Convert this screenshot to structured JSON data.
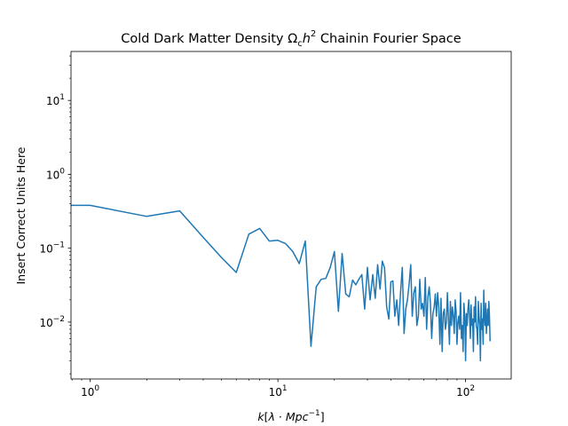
{
  "chart_data": {
    "type": "line",
    "title": "Cold Dark Matter Density Ω_c h^2 Chainin Fourier Space",
    "title_parts": [
      "Cold Dark Matter Density ",
      "Ω",
      "c",
      "h",
      "2",
      " Chainin Fourier Space"
    ],
    "xlabel": "k[λ · Mpc^-1]",
    "xlabel_parts": [
      "k",
      "[",
      "λ",
      " · ",
      "Mpc",
      "−1",
      "]"
    ],
    "ylabel": "Insert Correct Units Here",
    "xscale": "log",
    "yscale": "log",
    "xlim": [
      0.79,
      175
    ],
    "ylim": [
      0.0017,
      46
    ],
    "grid": false,
    "line_color": "#1f77b4",
    "x_ticks": [
      {
        "value": 1,
        "base": "10",
        "exp": "0"
      },
      {
        "value": 10,
        "base": "10",
        "exp": "1"
      },
      {
        "value": 100,
        "base": "10",
        "exp": "2"
      }
    ],
    "y_ticks": [
      {
        "value": 0.01,
        "base": "10",
        "exp": "−2"
      },
      {
        "value": 0.1,
        "base": "10",
        "exp": "−1"
      },
      {
        "value": 1,
        "base": "10",
        "exp": "0"
      },
      {
        "value": 10,
        "base": "10",
        "exp": "1"
      }
    ],
    "series": [
      {
        "x": [
          0.5,
          1,
          2,
          3,
          4,
          5,
          6,
          7,
          8,
          9,
          10,
          11,
          12,
          13,
          14,
          15,
          16,
          17,
          18,
          19,
          20,
          21,
          22,
          23,
          24,
          25,
          26,
          27,
          28,
          29,
          30,
          31,
          32,
          33,
          34,
          35,
          36,
          37,
          38,
          39,
          40,
          41,
          42,
          43,
          44,
          45,
          46,
          47,
          48,
          49,
          50,
          51,
          52,
          53,
          54,
          55,
          56,
          57,
          58,
          59,
          60,
          61,
          62,
          63,
          64,
          65,
          66,
          67,
          68,
          69,
          70,
          71,
          72,
          73,
          74,
          75,
          76,
          77,
          78,
          79,
          80,
          81,
          82,
          83,
          84,
          85,
          86,
          87,
          88,
          89,
          90,
          91,
          92,
          93,
          94,
          95,
          96,
          97,
          98,
          99,
          100,
          101,
          102,
          103,
          104,
          105,
          106,
          107,
          108,
          109,
          110,
          111,
          112,
          113,
          114,
          115,
          116,
          117,
          118,
          119,
          120,
          121,
          122,
          123,
          124,
          125,
          126,
          127,
          128,
          129,
          130,
          131,
          132,
          133,
          134,
          135
        ],
        "y": [
          0.38,
          0.38,
          0.27,
          0.32,
          0.14,
          0.075,
          0.047,
          0.155,
          0.185,
          0.125,
          0.128,
          0.115,
          0.09,
          0.062,
          0.125,
          0.0047,
          0.03,
          0.038,
          0.039,
          0.055,
          0.09,
          0.014,
          0.085,
          0.024,
          0.022,
          0.037,
          0.032,
          0.038,
          0.044,
          0.015,
          0.055,
          0.02,
          0.044,
          0.021,
          0.06,
          0.028,
          0.067,
          0.054,
          0.016,
          0.011,
          0.035,
          0.036,
          0.012,
          0.02,
          0.009,
          0.025,
          0.055,
          0.007,
          0.015,
          0.02,
          0.032,
          0.06,
          0.012,
          0.025,
          0.03,
          0.009,
          0.012,
          0.038,
          0.015,
          0.018,
          0.012,
          0.04,
          0.008,
          0.022,
          0.03,
          0.018,
          0.006,
          0.013,
          0.016,
          0.024,
          0.012,
          0.025,
          0.016,
          0.005,
          0.021,
          0.004,
          0.013,
          0.015,
          0.008,
          0.01,
          0.025,
          0.012,
          0.005,
          0.019,
          0.009,
          0.016,
          0.012,
          0.007,
          0.02,
          0.014,
          0.005,
          0.01,
          0.012,
          0.008,
          0.025,
          0.006,
          0.009,
          0.004,
          0.018,
          0.012,
          0.003,
          0.013,
          0.009,
          0.015,
          0.02,
          0.012,
          0.006,
          0.017,
          0.009,
          0.011,
          0.004,
          0.016,
          0.01,
          0.022,
          0.009,
          0.008,
          0.005,
          0.019,
          0.012,
          0.009,
          0.003,
          0.018,
          0.008,
          0.011,
          0.005,
          0.027,
          0.012,
          0.009,
          0.018,
          0.007,
          0.01,
          0.015,
          0.009,
          0.019,
          0.012,
          0.0055
        ]
      }
    ]
  }
}
